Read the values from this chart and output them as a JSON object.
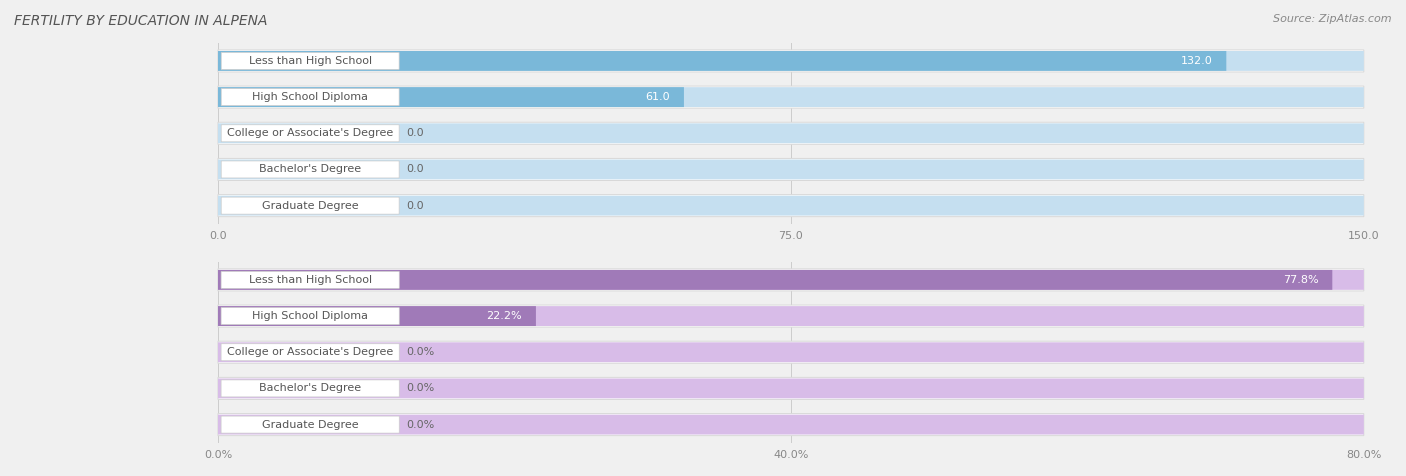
{
  "title": "FERTILITY BY EDUCATION IN ALPENA",
  "source_text": "Source: ZipAtlas.com",
  "categories": [
    "Less than High School",
    "High School Diploma",
    "College or Associate's Degree",
    "Bachelor's Degree",
    "Graduate Degree"
  ],
  "section1": {
    "values": [
      132.0,
      61.0,
      0.0,
      0.0,
      0.0
    ],
    "xlim": [
      0,
      150
    ],
    "xticks": [
      0.0,
      75.0,
      150.0
    ],
    "xtick_labels": [
      "0.0",
      "75.0",
      "150.0"
    ],
    "bar_color": "#7ab8d9",
    "bar_bg_color": "#c5dff0",
    "value_color": "#ffffff"
  },
  "section2": {
    "values": [
      77.8,
      22.2,
      0.0,
      0.0,
      0.0
    ],
    "xlim": [
      0,
      80
    ],
    "xticks": [
      0.0,
      40.0,
      80.0
    ],
    "xtick_labels": [
      "0.0%",
      "40.0%",
      "80.0%"
    ],
    "bar_color": "#a07ab8",
    "bar_bg_color": "#d8bce8",
    "value_color": "#ffffff"
  },
  "background_color": "#f0f0f0",
  "row_bg_color": "#ffffff",
  "row_border_color": "#d8d8d8",
  "label_bg_color": "#ffffff",
  "label_border_color": "#cccccc",
  "label_text_color": "#555555",
  "value_text_color_inside": "#ffffff",
  "value_text_color_outside": "#666666",
  "tick_text_color": "#888888",
  "title_color": "#555555",
  "source_color": "#888888",
  "title_fontsize": 10,
  "label_fontsize": 8,
  "value_fontsize": 8,
  "tick_fontsize": 8,
  "source_fontsize": 8
}
